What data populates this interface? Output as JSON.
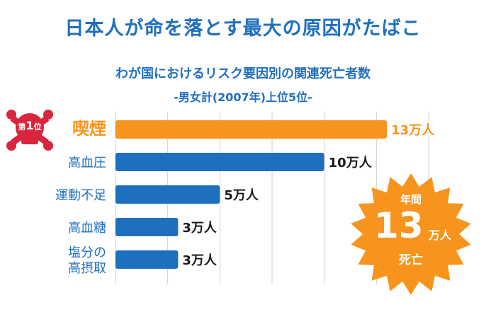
{
  "headline": "日本人が命を落とす最大の原因がたばこ",
  "chart_data": {
    "type": "bar",
    "orientation": "horizontal",
    "title": "わが国におけるリスク要因別の関連死亡者数",
    "subtitle": "-男女計(2007年)上位5位-",
    "unit": "万人",
    "categories": [
      "喫煙",
      "高血圧",
      "運動不足",
      "高血糖",
      "塩分の高摂取"
    ],
    "category_lines": [
      [
        "喫煙"
      ],
      [
        "高血圧"
      ],
      [
        "運動不足"
      ],
      [
        "高血糖"
      ],
      [
        "塩分の",
        "高摂取"
      ]
    ],
    "values": [
      13,
      10,
      5,
      3,
      3
    ],
    "value_labels": [
      "13万人",
      "10万人",
      "5万人",
      "3万人",
      "3万人"
    ],
    "xlim": [
      0,
      15
    ],
    "grid": true,
    "highlight_index": 0,
    "colors": {
      "highlight": "#f7941d",
      "bar": "#1f6fbf",
      "grid": "#d0d0d0",
      "highlight_text": "#f7941d",
      "text": "#1f6fbf"
    }
  },
  "rank_badge": {
    "prefix": "第",
    "number": "1",
    "suffix": "位",
    "color": "#d7263d"
  },
  "starburst": {
    "line1": "年間",
    "big": "13",
    "unit": "万人",
    "line3": "死亡",
    "color": "#f7941d"
  }
}
